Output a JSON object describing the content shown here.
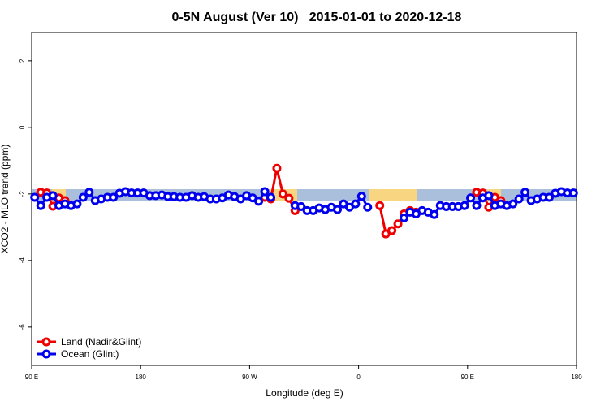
{
  "chart_data": {
    "type": "line",
    "title": "0-5N August (Ver 10)   2015-01-01 to 2020-12-18",
    "xlabel": "Longitude (deg E)",
    "ylabel": "XCO2 - MLO trend (ppm)",
    "xlim": [
      90,
      540
    ],
    "ylim": [
      -7.15,
      2.85
    ],
    "xticks": [
      {
        "value": 90,
        "label": "90 E"
      },
      180,
      {
        "value": 270,
        "label": "90 W"
      },
      {
        "value": 360,
        "label": "0"
      },
      {
        "value": 450,
        "label": "90 E"
      },
      {
        "value": 540,
        "label": "180"
      }
    ],
    "yticks": [
      2,
      0,
      -2,
      -4,
      -6
    ],
    "legend": "bottom-left",
    "x": [
      92.5,
      97.5,
      102.5,
      107.5,
      112.5,
      117.5,
      122.5,
      127.5,
      132.5,
      137.5,
      142.5,
      147.5,
      152.5,
      157.5,
      162.5,
      167.5,
      172.5,
      177.5,
      182.5,
      187.5,
      192.5,
      197.5,
      202.5,
      207.5,
      212.5,
      217.5,
      222.5,
      227.5,
      232.5,
      237.5,
      242.5,
      247.5,
      252.5,
      257.5,
      262.5,
      267.5,
      272.5,
      277.5,
      282.5,
      287.5,
      292.5,
      297.5,
      302.5,
      307.5,
      312.5,
      317.5,
      322.5,
      327.5,
      332.5,
      337.5,
      342.5,
      347.5,
      352.5,
      357.5,
      362.5,
      367.5,
      372.5,
      377.5,
      382.5,
      387.5,
      392.5,
      397.5,
      402.5,
      407.5,
      412.5,
      417.5,
      422.5,
      427.5,
      432.5,
      437.5,
      442.5,
      447.5,
      452.5,
      457.5,
      462.5,
      467.5,
      472.5,
      477.5,
      482.5,
      487.5,
      492.5,
      497.5,
      502.5,
      507.5,
      512.5,
      517.5,
      522.5,
      527.5,
      532.5,
      537.5
    ],
    "series": [
      {
        "name": "Land (Nadir&Glint)",
        "color": "#ee0000",
        "values": [
          null,
          -1.95,
          -1.97,
          -2.37,
          -2.12,
          -2.2,
          null,
          null,
          null,
          null,
          null,
          null,
          null,
          null,
          null,
          null,
          null,
          null,
          null,
          null,
          null,
          null,
          null,
          null,
          null,
          null,
          null,
          null,
          null,
          null,
          null,
          null,
          null,
          null,
          null,
          null,
          null,
          null,
          -2.1,
          -2.15,
          -1.23,
          -2.0,
          -2.13,
          -2.5,
          null,
          null,
          null,
          null,
          null,
          null,
          null,
          null,
          null,
          null,
          null,
          null,
          null,
          -2.35,
          -3.2,
          -3.1,
          -2.9,
          -2.6,
          -2.5,
          -2.55,
          null,
          null,
          null,
          null,
          null,
          null,
          null,
          null,
          null,
          -1.95,
          -1.97,
          -2.4,
          -2.1,
          -2.2,
          null,
          null,
          null,
          null,
          null,
          null,
          null,
          null,
          null,
          null,
          null,
          null
        ]
      },
      {
        "name": "Ocean (Glint)",
        "color": "#0000ee",
        "values": [
          -2.1,
          -2.35,
          -2.1,
          -2.05,
          -2.35,
          -2.3,
          -2.35,
          -2.3,
          -2.1,
          -1.95,
          -2.2,
          -2.15,
          -2.1,
          -2.1,
          -1.98,
          -1.93,
          -1.97,
          -1.97,
          -1.97,
          -2.05,
          -2.05,
          -2.03,
          -2.08,
          -2.08,
          -2.1,
          -2.1,
          -2.05,
          -2.1,
          -2.08,
          -2.15,
          -2.15,
          -2.12,
          -2.03,
          -2.08,
          -2.15,
          -2.05,
          -2.12,
          -2.22,
          -1.93,
          -2.1,
          null,
          null,
          null,
          -2.35,
          -2.38,
          -2.5,
          -2.5,
          -2.42,
          -2.47,
          -2.4,
          -2.47,
          -2.3,
          -2.4,
          -2.3,
          -2.07,
          -2.4,
          null,
          null,
          null,
          null,
          null,
          -2.72,
          -2.55,
          -2.6,
          -2.5,
          -2.55,
          -2.62,
          -2.35,
          -2.38,
          -2.38,
          -2.38,
          -2.35,
          -2.12,
          -2.35,
          -2.12,
          -2.05,
          -2.35,
          -2.3,
          -2.35,
          -2.3,
          -2.15,
          -1.95,
          -2.2,
          -2.15,
          -2.1,
          -2.1,
          -1.98,
          -1.93,
          -1.97,
          -1.97
        ]
      }
    ]
  }
}
